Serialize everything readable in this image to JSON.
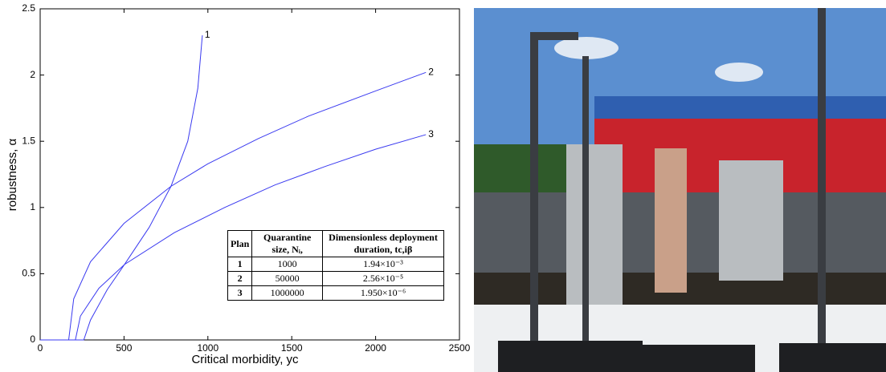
{
  "chart_data": {
    "type": "line",
    "xlabel": "Critical morbidity, yc",
    "ylabel": "robustness, α",
    "xlim": [
      0,
      2500
    ],
    "xticks": [
      0,
      500,
      1000,
      1500,
      2000,
      2500
    ],
    "ylim": [
      0,
      2.5
    ],
    "yticks": [
      0,
      0.5,
      1,
      1.5,
      2,
      2.5
    ],
    "series": [
      {
        "name": "1",
        "color": "#3a3af0",
        "x": [
          0,
          260,
          300,
          400,
          503,
          650,
          780,
          880,
          940,
          967
        ],
        "values": [
          0,
          0,
          0.15,
          0.38,
          0.57,
          0.85,
          1.16,
          1.5,
          1.9,
          2.3
        ]
      },
      {
        "name": "2",
        "color": "#3a3af0",
        "x": [
          0,
          170,
          200,
          300,
          500,
          780,
          1000,
          1300,
          1600,
          2000,
          2300
        ],
        "values": [
          0,
          0,
          0.31,
          0.59,
          0.88,
          1.16,
          1.33,
          1.52,
          1.69,
          1.88,
          2.02
        ]
      },
      {
        "name": "3",
        "color": "#3a3af0",
        "x": [
          0,
          210,
          240,
          350,
          503,
          800,
          1100,
          1400,
          1700,
          2000,
          2300
        ],
        "values": [
          0,
          0,
          0.18,
          0.39,
          0.57,
          0.81,
          1.0,
          1.17,
          1.31,
          1.44,
          1.55
        ]
      }
    ],
    "table": {
      "columns": [
        "Plan",
        "Quarantine size, Nᵢ,",
        "Dimensionless deployment duration, tc,iβ"
      ],
      "rows": [
        [
          "1",
          "1000",
          "1.94×10⁻³"
        ],
        [
          "2",
          "50000",
          "2.56×10⁻⁵"
        ],
        [
          "3",
          "1000000",
          "1.950×10⁻⁶"
        ]
      ]
    }
  }
}
